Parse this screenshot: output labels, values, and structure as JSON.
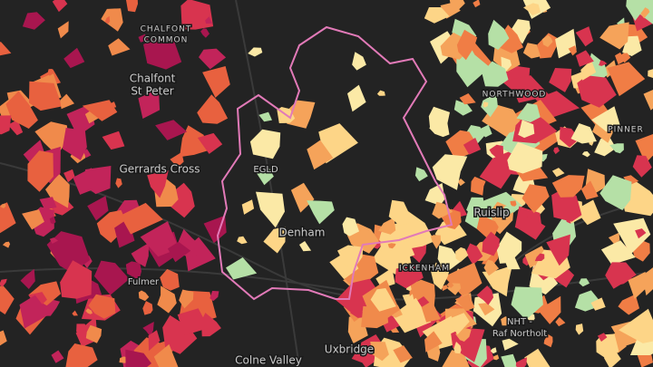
{
  "places": [
    {
      "lines": [
        "CHALFONT",
        "COMMON"
      ]
    },
    {
      "lines": [
        "Chalfont",
        "St Peter"
      ]
    },
    {
      "lines": [
        "Gerrards Cross"
      ]
    },
    {
      "lines": [
        "EGLD"
      ]
    },
    {
      "lines": [
        "Denham"
      ]
    },
    {
      "lines": [
        "NORTHWOOD"
      ]
    },
    {
      "lines": [
        "PINNER"
      ]
    },
    {
      "lines": [
        "Ruislip"
      ]
    },
    {
      "lines": [
        "ICKENHAM"
      ]
    },
    {
      "lines": [
        "Fulmer"
      ]
    },
    {
      "lines": [
        "NHT -",
        "Raf Northolt"
      ]
    },
    {
      "lines": [
        "Uxbridge"
      ]
    },
    {
      "lines": [
        "Colne Valley"
      ]
    }
  ]
}
